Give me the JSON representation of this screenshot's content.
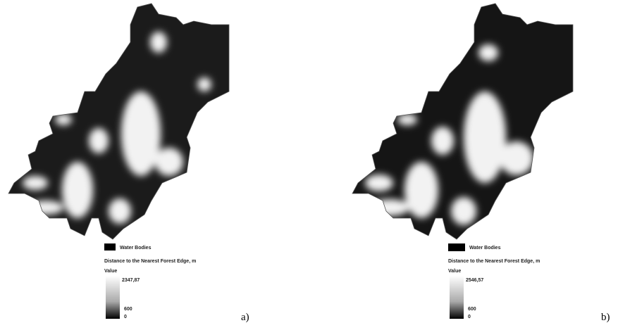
{
  "panels": [
    {
      "label": "a)",
      "legend": {
        "water": "Water Bodies",
        "title": "Distance to the Nearest Forest Edge, m",
        "value_heading": "Value",
        "max": "2347,87",
        "mid": "600",
        "min": "0"
      }
    },
    {
      "label": "b)",
      "legend": {
        "water": "Water Bodies",
        "title": "Distance to the Nearest Forest Edge, m",
        "value_heading": "Value",
        "max": "2546,57",
        "mid": "600",
        "min": "0"
      }
    }
  ]
}
